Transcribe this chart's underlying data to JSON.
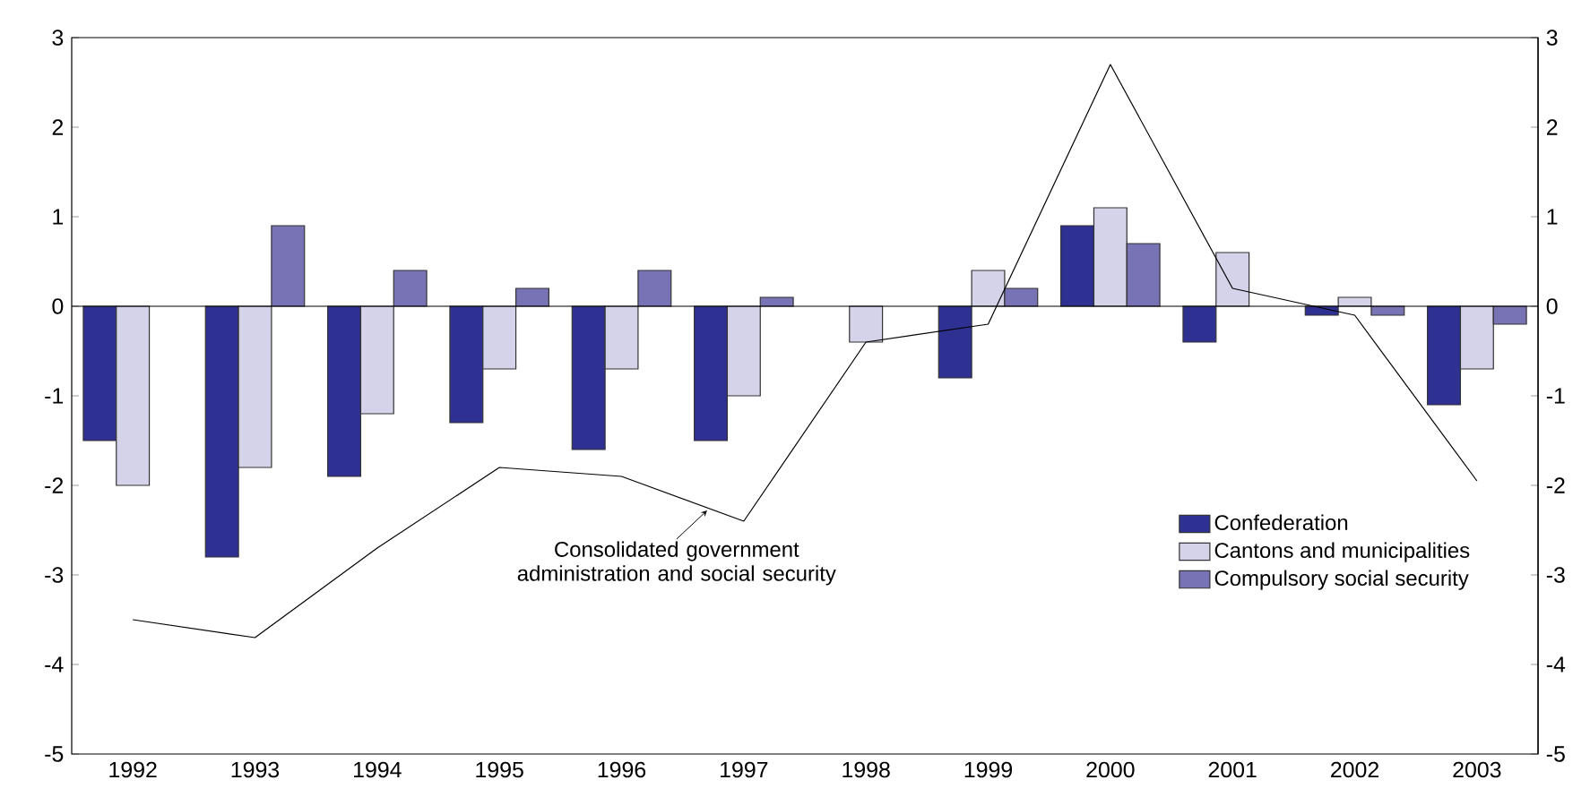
{
  "chart_data": {
    "type": "bar",
    "categories": [
      "1992",
      "1993",
      "1994",
      "1995",
      "1996",
      "1997",
      "1998",
      "1999",
      "2000",
      "2001",
      "2002",
      "2003"
    ],
    "series": [
      {
        "name": "Confederation",
        "color": "#2e3192",
        "values": [
          -1.5,
          -2.8,
          -1.9,
          -1.3,
          -1.6,
          -1.5,
          null,
          -0.8,
          0.9,
          -0.4,
          -0.1,
          -1.1
        ]
      },
      {
        "name": "Cantons and municipalities",
        "color": "#d4d3ea",
        "values": [
          -2.0,
          -1.8,
          -1.2,
          -0.7,
          -0.7,
          -1.0,
          -0.4,
          0.4,
          1.1,
          0.6,
          0.1,
          -0.7
        ]
      },
      {
        "name": "Compulsory social security",
        "color": "#7773b5",
        "values": [
          null,
          0.9,
          0.4,
          0.2,
          0.4,
          0.1,
          null,
          0.2,
          0.7,
          null,
          -0.1,
          -0.2
        ]
      },
      {
        "name": "Consolidated government administration and social security",
        "type": "line",
        "color": "#000000",
        "values": [
          -3.5,
          -3.7,
          -2.7,
          -1.8,
          -1.9,
          -2.4,
          -0.4,
          -0.2,
          2.7,
          0.2,
          -0.1,
          -1.95
        ]
      }
    ],
    "ylim": [
      -5,
      3
    ],
    "yticks": [
      -5,
      -4,
      -3,
      -2,
      -1,
      0,
      1,
      2,
      3
    ],
    "y2lim": [
      -5,
      3
    ],
    "y2ticks": [
      -5,
      -4,
      -3,
      -2,
      -1,
      0,
      1,
      2,
      3
    ],
    "ref_lines": [
      {
        "axis": "y",
        "value": 0,
        "color": "#000000"
      }
    ],
    "grid": false,
    "legend": "bottom right",
    "marker": "none",
    "line_style": "solid"
  }
}
